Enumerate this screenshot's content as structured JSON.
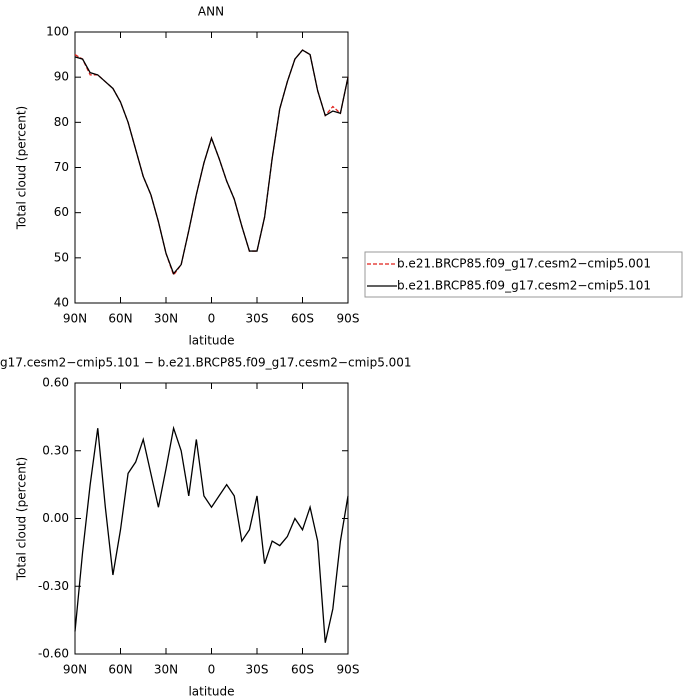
{
  "chart_data": [
    {
      "type": "line",
      "title": "ANN",
      "xlabel": "latitude",
      "ylabel": "Total cloud (percent)",
      "x": [
        90,
        85,
        80,
        75,
        70,
        65,
        60,
        55,
        50,
        45,
        40,
        35,
        30,
        25,
        20,
        15,
        10,
        5,
        0,
        -5,
        -10,
        -15,
        -20,
        -25,
        -30,
        -35,
        -40,
        -45,
        -50,
        -55,
        -60,
        -65,
        -70,
        -75,
        -80,
        -85,
        -90
      ],
      "series": [
        {
          "name": "b.e21.BRCP85.f09_g17.cesm2−cmip5.001",
          "color": "#e0201b",
          "dash": true,
          "values": [
            95,
            94,
            90.5,
            90.5,
            89,
            87.5,
            84.5,
            80,
            74,
            68,
            64,
            58,
            51,
            46.2,
            48.5,
            56,
            64,
            71,
            76.5,
            72,
            67,
            63,
            57,
            51.5,
            51.5,
            59,
            72,
            83,
            89,
            94,
            96,
            95,
            87,
            81.5,
            83.5,
            82,
            90
          ]
        },
        {
          "name": "b.e21.BRCP85.f09_g17.cesm2−cmip5.101",
          "color": "#000000",
          "dash": false,
          "values": [
            94.5,
            94,
            91,
            90.5,
            89,
            87.5,
            84.5,
            80,
            74,
            68,
            64,
            58,
            51,
            46.5,
            48.5,
            56,
            64,
            71,
            76.5,
            72,
            67,
            63,
            57,
            51.5,
            51.5,
            59,
            72,
            83,
            89,
            94,
            96,
            95,
            87,
            81.5,
            82.5,
            82,
            90
          ]
        }
      ],
      "xlim": [
        90,
        -90
      ],
      "xticks": [
        {
          "value": 90,
          "label": "90N"
        },
        {
          "value": 60,
          "label": "60N"
        },
        {
          "value": 30,
          "label": "30N"
        },
        0,
        {
          "value": -30,
          "label": "30S"
        },
        {
          "value": -60,
          "label": "60S"
        },
        {
          "value": -90,
          "label": "90S"
        }
      ],
      "ylim": [
        40,
        100
      ],
      "yticks": [
        40,
        50,
        60,
        70,
        80,
        90,
        100
      ],
      "legend": "right"
    },
    {
      "type": "line",
      "title": "g17.cesm2−cmip5.101 − b.e21.BRCP85.f09_g17.cesm2−cmip5.001",
      "xlabel": "latitude",
      "ylabel": "Total cloud (percent)",
      "x": [
        90,
        85,
        80,
        75,
        70,
        65,
        60,
        55,
        50,
        45,
        40,
        35,
        30,
        25,
        20,
        15,
        10,
        5,
        0,
        -5,
        -10,
        -15,
        -20,
        -25,
        -30,
        -35,
        -40,
        -45,
        -50,
        -55,
        -60,
        -65,
        -70,
        -75,
        -80,
        -85,
        -90
      ],
      "values": [
        -0.5,
        -0.15,
        0.15,
        0.4,
        0.05,
        -0.25,
        -0.05,
        0.2,
        0.25,
        0.35,
        0.2,
        0.05,
        0.22,
        0.4,
        0.3,
        0.1,
        0.35,
        0.1,
        0.05,
        0.1,
        0.15,
        0.1,
        -0.1,
        -0.05,
        0.1,
        -0.2,
        -0.1,
        -0.12,
        -0.08,
        0,
        -0.05,
        0.05,
        -0.1,
        -0.55,
        -0.4,
        -0.1,
        0.1
      ],
      "color": "#000000",
      "xlim": [
        90,
        -90
      ],
      "xticks": [
        {
          "value": 90,
          "label": "90N"
        },
        {
          "value": 60,
          "label": "60N"
        },
        {
          "value": 30,
          "label": "30N"
        },
        0,
        {
          "value": -30,
          "label": "30S"
        },
        {
          "value": -60,
          "label": "60S"
        },
        {
          "value": -90,
          "label": "90S"
        }
      ],
      "ylim": [
        -0.6,
        0.6
      ],
      "yticks": [
        {
          "value": -0.6,
          "label": "-0.60"
        },
        {
          "value": -0.3,
          "label": "-0.30"
        },
        {
          "value": 0,
          "label": "0.00"
        },
        {
          "value": 0.3,
          "label": "0.30"
        },
        {
          "value": 0.6,
          "label": "0.60"
        }
      ]
    }
  ]
}
